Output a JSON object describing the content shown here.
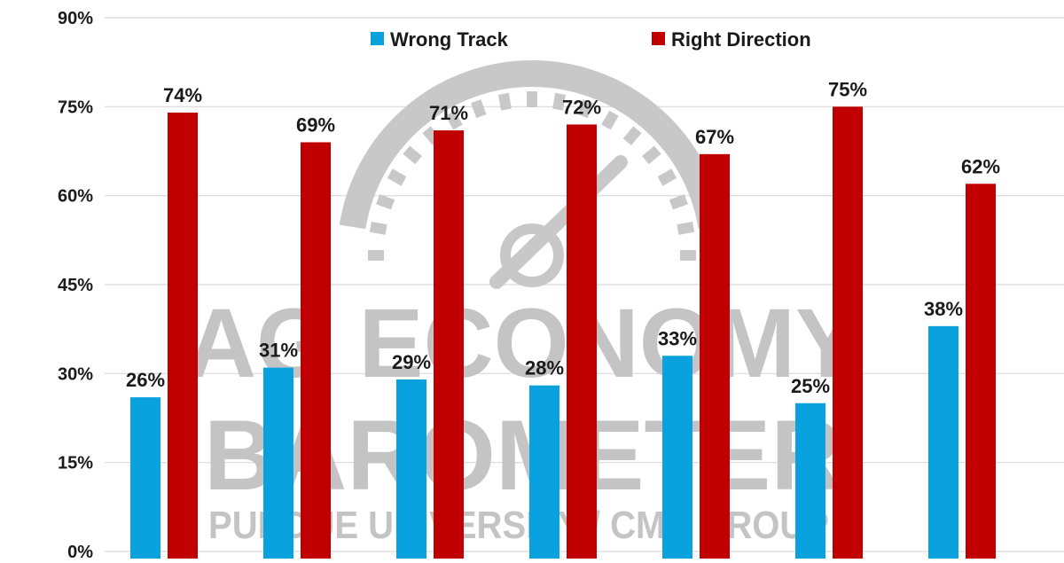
{
  "chart_data": {
    "type": "bar",
    "categories": [
      "",
      "",
      "",
      "",
      "",
      "",
      ""
    ],
    "series": [
      {
        "name": "Wrong Track",
        "values": [
          26,
          31,
          29,
          28,
          33,
          25,
          38
        ],
        "labels": [
          "26%",
          "31%",
          "29%",
          "28%",
          "33%",
          "25%",
          "38%"
        ],
        "color": "#0aa2de"
      },
      {
        "name": "Right Direction",
        "values": [
          74,
          69,
          71,
          72,
          67,
          75,
          62
        ],
        "labels": [
          "74%",
          "69%",
          "71%",
          "72%",
          "67%",
          "75%",
          "62%"
        ],
        "color": "#c00000"
      }
    ],
    "ylim": [
      0,
      90
    ],
    "yticks": [
      0,
      15,
      30,
      45,
      60,
      75,
      90
    ],
    "ytick_labels": [
      "0%",
      "15%",
      "30%",
      "45%",
      "60%",
      "75%",
      "90%"
    ],
    "grid": true,
    "legend_position": "top-center"
  },
  "watermark": {
    "line1": "AG ECONOMY",
    "line2": "BAROMETER",
    "line3": "PURDUE UNIVERSITY / CME GROUP"
  }
}
